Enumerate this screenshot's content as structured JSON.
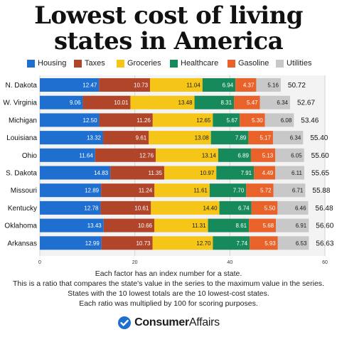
{
  "title_line1": "Lowest cost of living",
  "title_line2": "states in America",
  "brand": {
    "part1": "Consumer",
    "part2": "Affairs"
  },
  "footnotes": [
    "Each factor has an index number for a state.",
    "This is a ratio that compares the state's value in the series to the maximum value in the series.",
    "States with the 10 lowest totals are the 10 lowest-cost states.",
    "Each ratio was multiplied by 100 for scoring purposes."
  ],
  "chart_data": {
    "type": "bar",
    "orientation": "horizontal",
    "stacked": true,
    "xlim": [
      0,
      60
    ],
    "xticks": [
      "0",
      "20",
      "40",
      "60"
    ],
    "grid": true,
    "legend_position": "top",
    "categories": [
      "N. Dakota",
      "W. Virginia",
      "Michigan",
      "Louisiana",
      "Ohio",
      "S. Dakota",
      "Missouri",
      "Kentucky",
      "Oklahoma",
      "Arkansas"
    ],
    "series": [
      {
        "name": "Housing",
        "color": "#1e6fd0",
        "label_color": "#ffffff",
        "values": [
          12.47,
          9.06,
          12.5,
          13.32,
          11.64,
          14.83,
          12.89,
          12.78,
          13.43,
          12.99
        ],
        "labels": [
          "12.47",
          "9.06",
          "12.50",
          "13.32",
          "11.64",
          "14.83",
          "12.89",
          "12.78",
          "13.43",
          "12.99"
        ]
      },
      {
        "name": "Taxes",
        "color": "#b0452a",
        "label_color": "#ffffff",
        "values": [
          10.73,
          10.01,
          11.26,
          9.61,
          12.76,
          11.35,
          11.24,
          10.61,
          10.66,
          10.73
        ],
        "labels": [
          "10.73",
          "10.01",
          "11.26",
          "9.61",
          "12.76",
          "11.35",
          "11.24",
          "10.61",
          "10.66",
          "10.73"
        ]
      },
      {
        "name": "Groceries",
        "color": "#f5c518",
        "label_color": "#1a1a1a",
        "values": [
          11.04,
          13.48,
          12.65,
          13.08,
          13.14,
          10.97,
          11.61,
          14.4,
          11.31,
          12.7
        ],
        "labels": [
          "11.04",
          "13.48",
          "12.65",
          "13.08",
          "13.14",
          "10.97",
          "11.61",
          "14.40",
          "11.31",
          "12.70"
        ]
      },
      {
        "name": "Healthcare",
        "color": "#168a5a",
        "label_color": "#ffffff",
        "values": [
          6.94,
          8.31,
          5.67,
          7.89,
          6.89,
          7.91,
          7.7,
          6.74,
          8.61,
          7.74
        ],
        "labels": [
          "6.94",
          "8.31",
          "5.67",
          "7.89",
          "6.89",
          "7.91",
          "7.70",
          "6.74",
          "8.61",
          "7.74"
        ]
      },
      {
        "name": "Gasoline",
        "color": "#e8622a",
        "label_color": "#ffffff",
        "values": [
          4.37,
          5.47,
          5.3,
          5.17,
          5.13,
          4.49,
          5.72,
          5.5,
          5.68,
          5.93
        ],
        "labels": [
          "4.37",
          "5.47",
          "5.30",
          "5.17",
          "5.13",
          "4.49",
          "5.72",
          "5.50",
          "5.68",
          "5.93"
        ]
      },
      {
        "name": "Utilities",
        "color": "#c8c8c8",
        "label_color": "#1a1a1a",
        "values": [
          5.16,
          6.34,
          6.08,
          6.34,
          6.05,
          6.11,
          6.71,
          6.46,
          6.91,
          6.53
        ],
        "labels": [
          "5.16",
          "6.34",
          "6.08",
          "6.34",
          "6.05",
          "6.11",
          "6.71",
          "6.46",
          "6.91",
          "6.53"
        ]
      }
    ],
    "totals": [
      "50.72",
      "52.67",
      "53.46",
      "55.40",
      "55.60",
      "55.65",
      "55.88",
      "56.48",
      "56.60",
      "56.63"
    ]
  }
}
